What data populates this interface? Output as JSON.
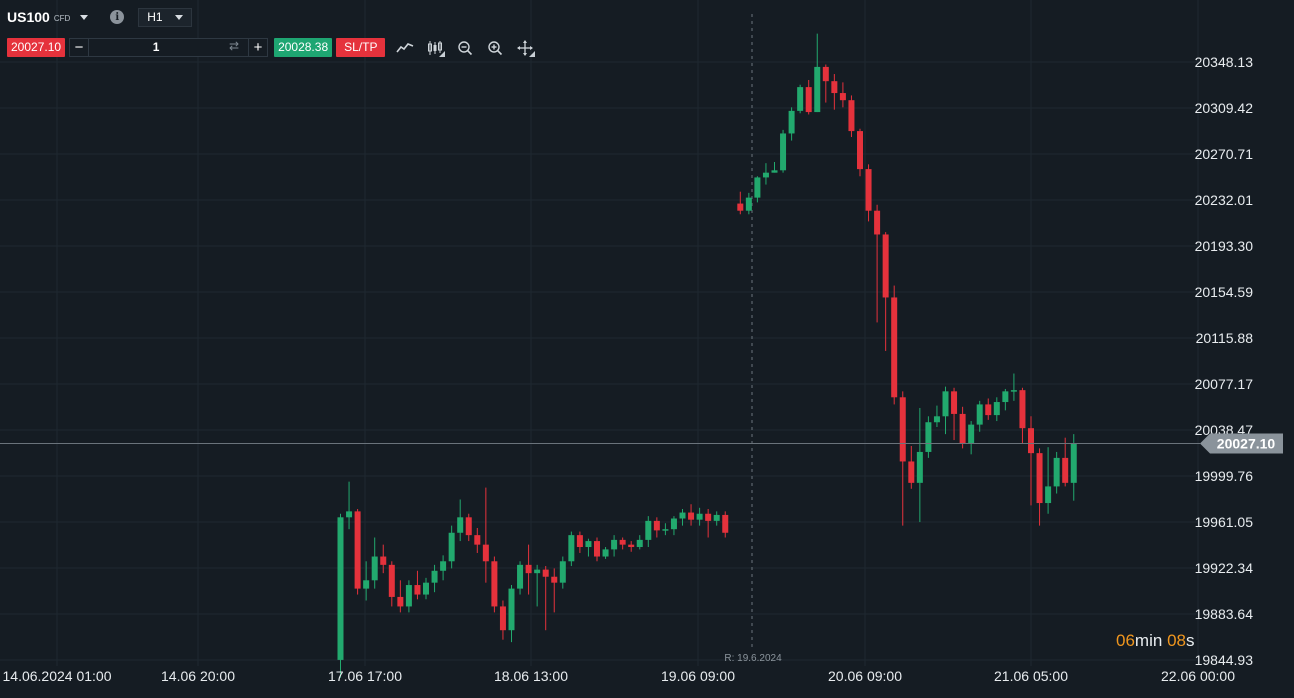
{
  "header": {
    "symbol": "US100",
    "symbol_tag": "CFD",
    "timeframe": "H1"
  },
  "order_bar": {
    "sell_price": "20027.10",
    "quantity": "1",
    "buy_price": "20028.38",
    "sltp_label": "SL/TP"
  },
  "tools": [
    "line-chart-icon",
    "candlestick-icon",
    "zoom-out-icon",
    "zoom-in-icon",
    "move-icon"
  ],
  "timer": {
    "minutes": "06",
    "min_label": "min",
    "seconds": "08",
    "sec_label": "s"
  },
  "colors": {
    "background": "#151c23",
    "up": "#22a96e",
    "down": "#e5323c",
    "grid": "#1f2830",
    "text": "#e8ecef",
    "timer_accent": "#f0961e"
  },
  "chart_data": {
    "type": "candlestick",
    "symbol": "US100",
    "timeframe": "H1",
    "ylim": [
      19830,
      20370
    ],
    "y_ticks": [
      20348.13,
      20309.42,
      20270.71,
      20232.01,
      20193.3,
      20154.59,
      20115.88,
      20077.17,
      20038.47,
      19999.76,
      19961.05,
      19922.34,
      19883.64,
      19844.93
    ],
    "y_tick_labels": [
      "20348.13",
      "20309.42",
      "20270.71",
      "20232.01",
      "20193.30",
      "20154.59",
      "20115.88",
      "20077.17",
      "20038.47",
      "19999.76",
      "19961.05",
      "19922.34",
      "19883.64",
      "19844.93"
    ],
    "x_tick_labels": [
      "14.06.2024 01:00",
      "14.06 20:00",
      "17.06 17:00",
      "18.06 13:00",
      "19.06 09:00",
      "20.06 09:00",
      "21.06 05:00",
      "22.06 00:00"
    ],
    "current_price": 20027.1,
    "current_price_label": "20027.10",
    "session_marker_label": "R: 19.6.2024",
    "candles": [
      [
        19845,
        19965,
        19830,
        19968
      ],
      [
        19965,
        19970,
        19955,
        19995
      ],
      [
        19970,
        19905,
        19900,
        19972
      ],
      [
        19905,
        19912,
        19895,
        19928
      ],
      [
        19912,
        19932,
        19905,
        19948
      ],
      [
        19932,
        19925,
        19918,
        19942
      ],
      [
        19925,
        19898,
        19890,
        19928
      ],
      [
        19898,
        19890,
        19885,
        19912
      ],
      [
        19890,
        19908,
        19885,
        19912
      ],
      [
        19908,
        19900,
        19896,
        19920
      ],
      [
        19900,
        19910,
        19896,
        19914
      ],
      [
        19910,
        19920,
        19902,
        19925
      ],
      [
        19920,
        19928,
        19912,
        19933
      ],
      [
        19928,
        19952,
        19922,
        19958
      ],
      [
        19952,
        19965,
        19945,
        19980
      ],
      [
        19965,
        19950,
        19945,
        19968
      ],
      [
        19950,
        19942,
        19935,
        19956
      ],
      [
        19942,
        19928,
        19910,
        19990
      ],
      [
        19928,
        19890,
        19885,
        19932
      ],
      [
        19890,
        19870,
        19862,
        19895
      ],
      [
        19870,
        19905,
        19860,
        19908
      ],
      [
        19905,
        19925,
        19900,
        19928
      ],
      [
        19925,
        19918,
        19900,
        19942
      ],
      [
        19918,
        19921,
        19890,
        19925
      ],
      [
        19921,
        19915,
        19870,
        19924
      ],
      [
        19915,
        19910,
        19885,
        19922
      ],
      [
        19910,
        19928,
        19905,
        19932
      ],
      [
        19928,
        19950,
        19924,
        19953
      ],
      [
        19950,
        19940,
        19935,
        19953
      ],
      [
        19940,
        19945,
        19932,
        19947
      ],
      [
        19945,
        19932,
        19928,
        19948
      ],
      [
        19932,
        19938,
        19930,
        19940
      ],
      [
        19938,
        19946,
        19932,
        19950
      ],
      [
        19946,
        19942,
        19938,
        19948
      ],
      [
        19942,
        19940,
        19936,
        19945
      ],
      [
        19940,
        19946,
        19938,
        19950
      ],
      [
        19946,
        19962,
        19940,
        19966
      ],
      [
        19962,
        19954,
        19948,
        19965
      ],
      [
        19954,
        19955,
        19950,
        19960
      ],
      [
        19955,
        19964,
        19950,
        19966
      ],
      [
        19964,
        19969,
        19958,
        19972
      ],
      [
        19969,
        19963,
        19958,
        19976
      ],
      [
        19963,
        19968,
        19958,
        19973
      ],
      [
        19968,
        19962,
        19948,
        19972
      ],
      [
        19962,
        19967,
        19958,
        19970
      ],
      [
        19967,
        19952,
        19948,
        19970
      ],
      [
        20229,
        20223,
        20220,
        20239
      ],
      [
        20223,
        20234,
        20220,
        20238
      ],
      [
        20234,
        20251,
        20230,
        20252
      ],
      [
        20251,
        20255,
        20245,
        20263
      ],
      [
        20255,
        20257,
        20255,
        20264
      ],
      [
        20257,
        20288,
        20255,
        20291
      ],
      [
        20288,
        20307,
        20282,
        20310
      ],
      [
        20307,
        20327,
        20305,
        20329
      ],
      [
        20327,
        20306,
        20304,
        20333
      ],
      [
        20306,
        20344,
        20306,
        20372
      ],
      [
        20344,
        20332,
        20314,
        20346
      ],
      [
        20332,
        20322,
        20308,
        20338
      ],
      [
        20322,
        20316,
        20310,
        20331
      ],
      [
        20316,
        20290,
        20285,
        20320
      ],
      [
        20290,
        20258,
        20252,
        20292
      ],
      [
        20258,
        20223,
        20214,
        20262
      ],
      [
        20223,
        20203,
        20129,
        20228
      ],
      [
        20203,
        20150,
        20105,
        20205
      ],
      [
        20150,
        20066,
        20060,
        20160
      ],
      [
        20066,
        20012,
        19958,
        20071
      ],
      [
        20012,
        19994,
        19989,
        20025
      ],
      [
        19994,
        20020,
        19961,
        20057
      ],
      [
        20020,
        20045,
        20015,
        20050
      ],
      [
        20045,
        20050,
        20041,
        20059
      ],
      [
        20050,
        20071,
        20035,
        20075
      ],
      [
        20071,
        20052,
        20030,
        20074
      ],
      [
        20052,
        20027,
        20023,
        20058
      ],
      [
        20027,
        20043,
        20018,
        20046
      ],
      [
        20043,
        20060,
        20037,
        20063
      ],
      [
        20060,
        20051,
        20047,
        20065
      ],
      [
        20051,
        20062,
        20046,
        20066
      ],
      [
        20062,
        20071,
        20055,
        20073
      ],
      [
        20071,
        20072,
        20063,
        20086
      ],
      [
        20072,
        20040,
        20027,
        20074
      ],
      [
        20040,
        20019,
        19975,
        20050
      ],
      [
        20019,
        19977,
        19958,
        20023
      ],
      [
        19977,
        19991,
        19968,
        20024
      ],
      [
        19991,
        20015,
        19985,
        20020
      ],
      [
        20015,
        19994,
        19991,
        20032
      ],
      [
        19994,
        20027,
        19979,
        20035
      ]
    ]
  }
}
